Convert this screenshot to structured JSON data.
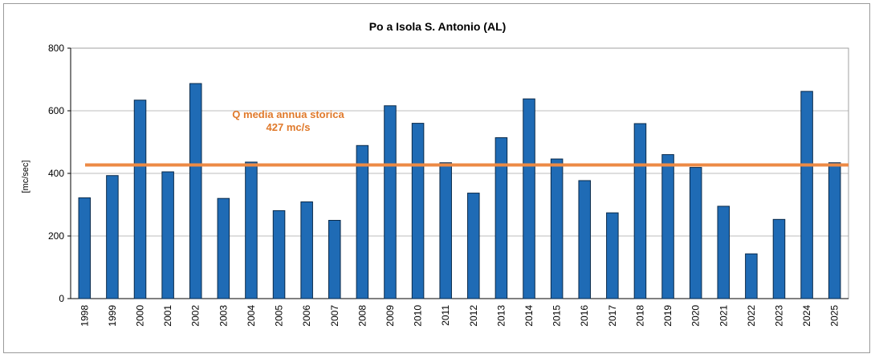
{
  "chart_data": {
    "type": "bar",
    "title": "Po a Isola S. Antonio  (AL)",
    "ylabel": "[mc/sec]",
    "xlabel": "",
    "ylim": [
      0,
      800
    ],
    "yticks": [
      0,
      200,
      400,
      600,
      800
    ],
    "grid": true,
    "categories": [
      "1998",
      "1999",
      "2000",
      "2001",
      "2002",
      "2003",
      "2004",
      "2005",
      "2006",
      "2007",
      "2008",
      "2009",
      "2010",
      "2011",
      "2012",
      "2013",
      "2014",
      "2015",
      "2016",
      "2017",
      "2018",
      "2019",
      "2020",
      "2021",
      "2022",
      "2023",
      "2024",
      "2025"
    ],
    "values": [
      322,
      393,
      634,
      405,
      687,
      320,
      436,
      281,
      309,
      250,
      489,
      616,
      560,
      434,
      337,
      514,
      638,
      446,
      377,
      274,
      559,
      460,
      419,
      295,
      143,
      253,
      662,
      434
    ],
    "bar_color": "#1f6bb5",
    "reference_line": {
      "value": 427,
      "color": "#ec8a45",
      "label_line1": "Q media annua storica",
      "label_line2": "427 mc/s"
    }
  }
}
